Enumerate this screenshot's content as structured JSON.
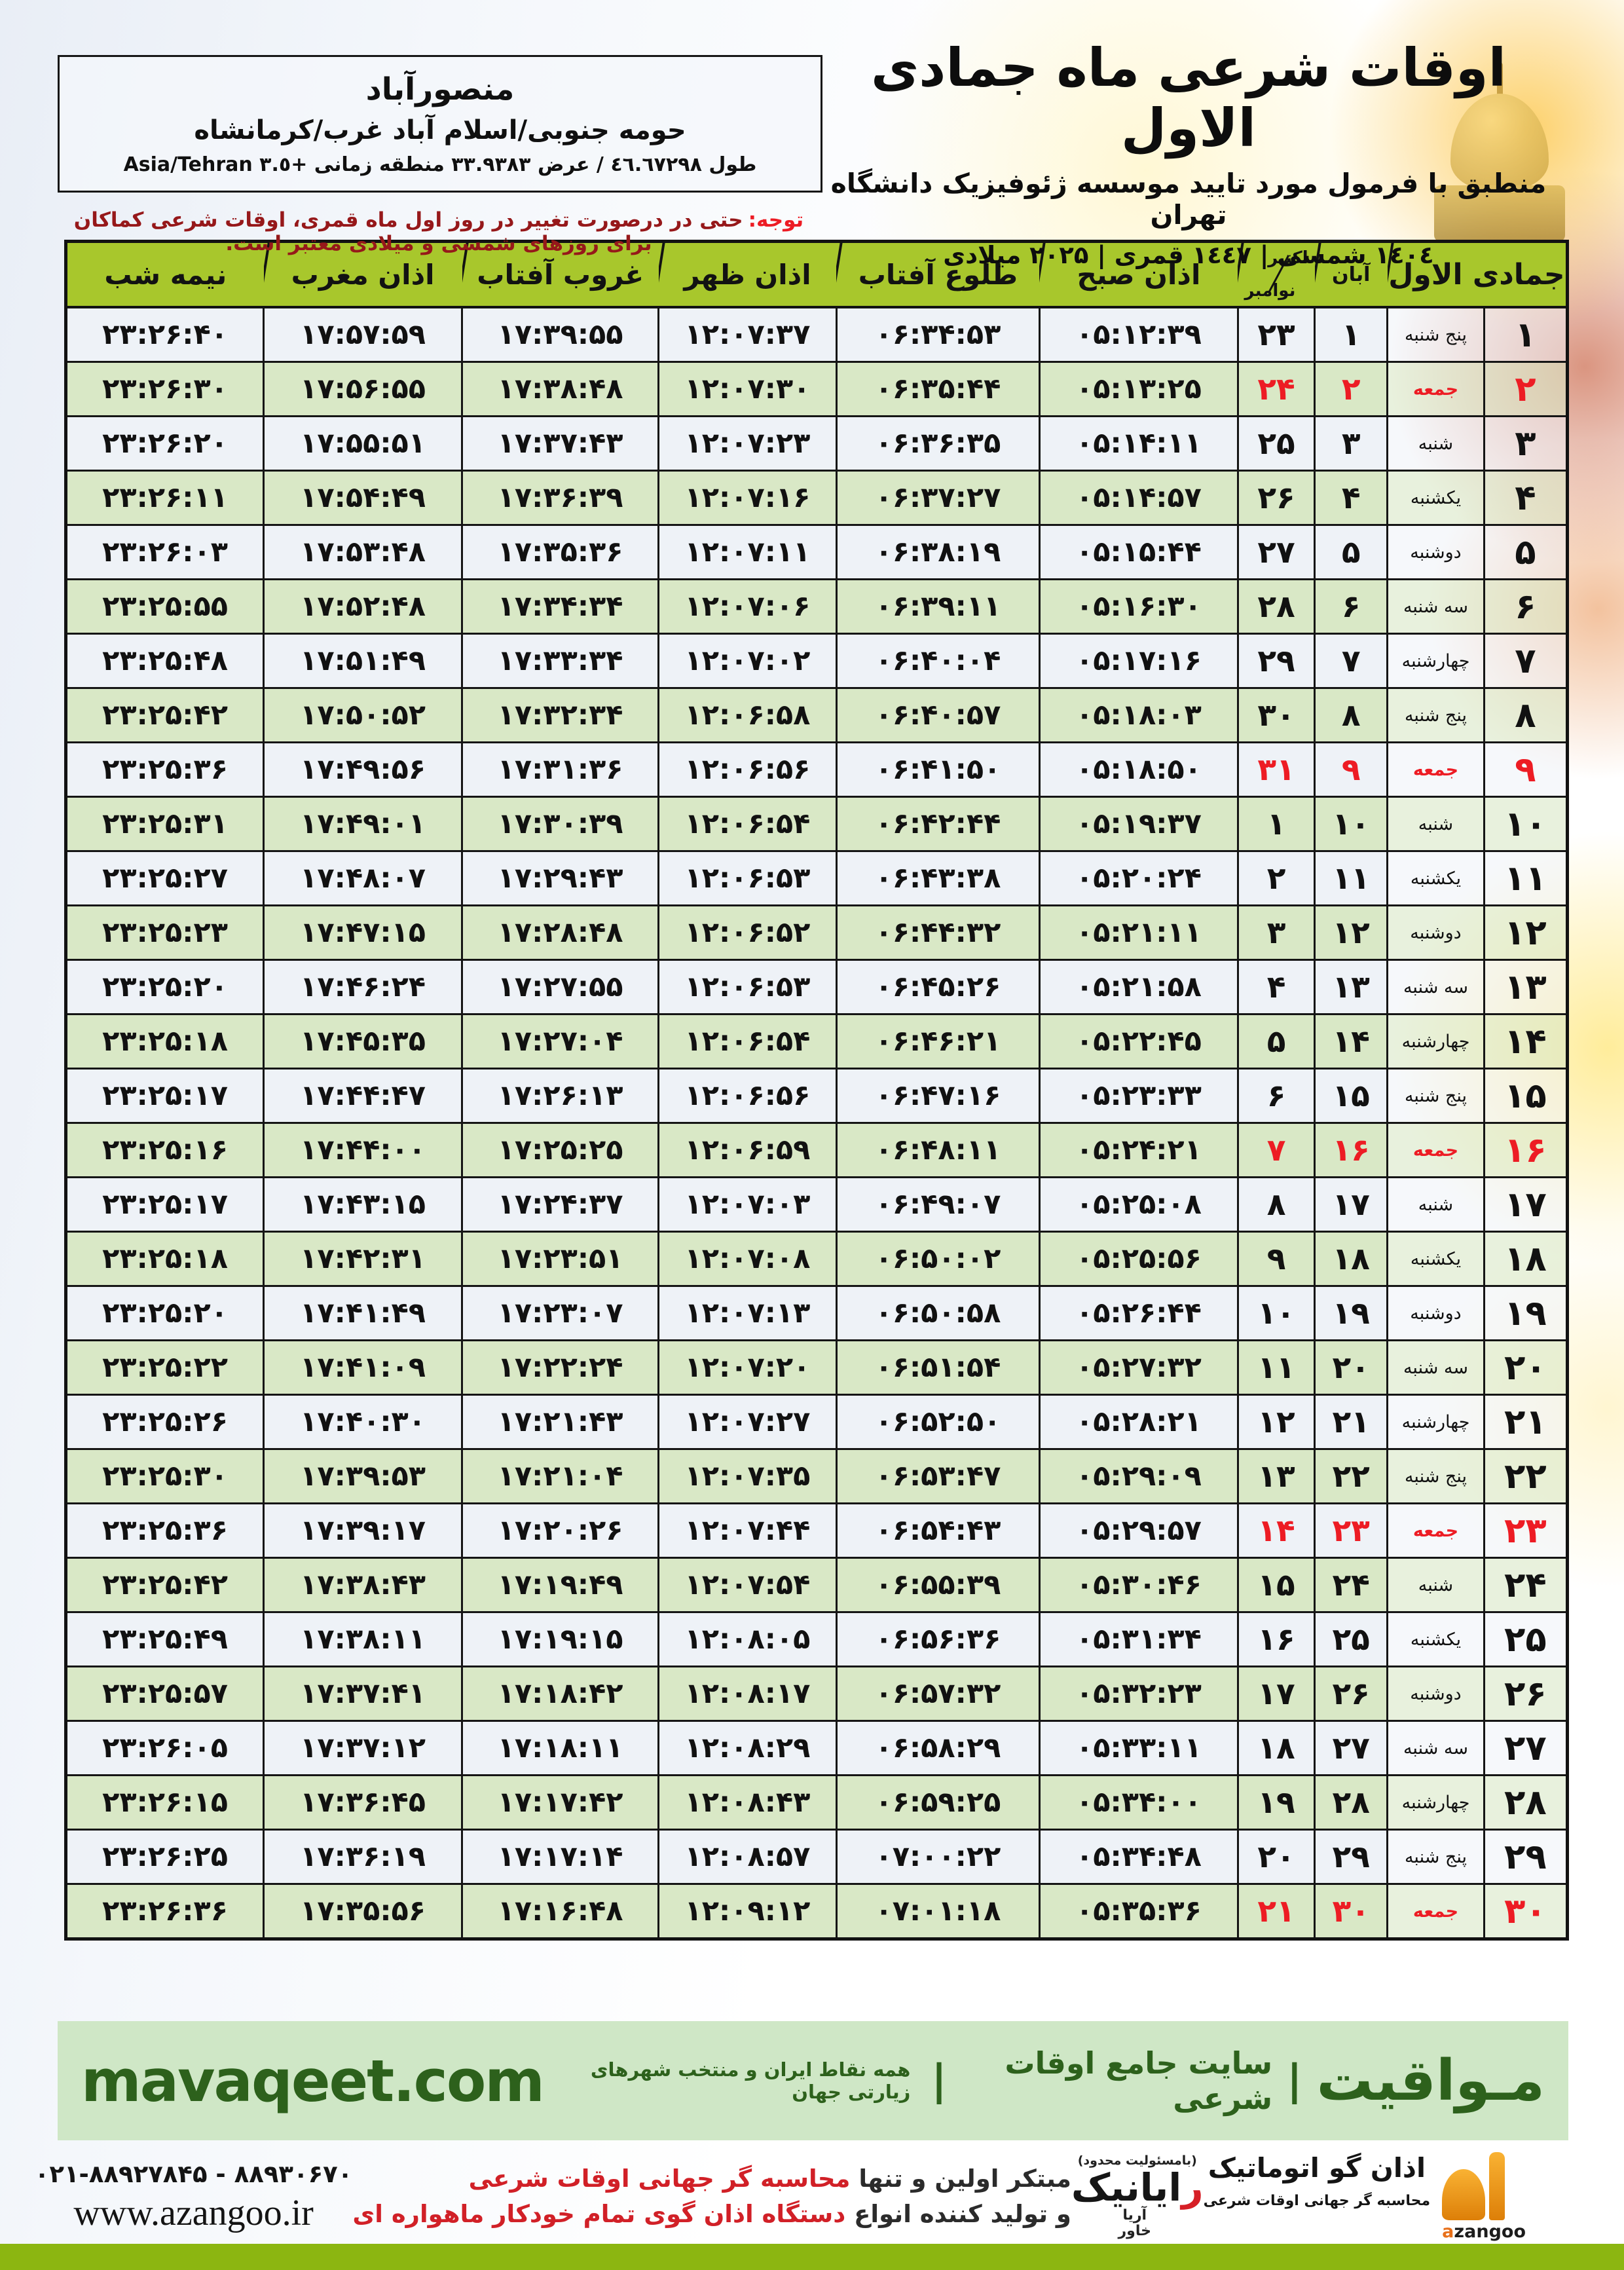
{
  "colors": {
    "header_green": "#a8c72c",
    "row_green": "#d9e8c6",
    "row_light": "#eef2f7",
    "friday_red": "#ed1c24",
    "banner_green": "#cfe7c6",
    "banner_text": "#2d611c",
    "strip_olive": "#8cb611",
    "note_red": "#96181a"
  },
  "header": {
    "title": "اوقات شرعی ماه جمادی الاول",
    "subtitle": "منطبق با فرمول مورد تایید موسسه ژئوفیزیک دانشگاه تهران",
    "year_line": "۱٤۰٤ شمسی | ۱٤٤۷ قمری | ۲۰۲۵ میلادی"
  },
  "location": {
    "name": "منصورآباد",
    "region": "حومه جنوبی/اسلام آباد غرب/کرمانشاه",
    "coords_line": "طول ٤٦.٦٧٢٩٨ / عرض ٣٣.٩٣٨٣ منطقه زمانی +٣.٥ Asia/Tehran"
  },
  "notice": {
    "label": "توجه:",
    "text": "حتی در درصورت تغییر در روز اول ماه قمری، اوقات شرعی کماکان برای روزهای شمسی و میلادی معتبر است."
  },
  "table": {
    "headers": {
      "month": "جمادی الاول",
      "aban": "آبان",
      "greg_top": "اکتبر",
      "greg_bottom": "نوامبر",
      "fajr": "اذان صبح",
      "sunrise": "طلوع آفتاب",
      "dhuhr": "اذان ظهر",
      "sunset": "غروب آفتاب",
      "maghrib": "اذان مغرب",
      "midnight": "نیمه شب"
    },
    "rows": [
      {
        "day": "۱",
        "weekday": "پنج شنبه",
        "aban": "۱",
        "greg": "۲۳",
        "fajr": "۰۵:۱۲:۳۹",
        "sunrise": "۰۶:۳۴:۵۳",
        "dhuhr": "۱۲:۰۷:۳۷",
        "sunset": "۱۷:۳۹:۵۵",
        "maghrib": "۱۷:۵۷:۵۹",
        "midnight": "۲۳:۲۶:۴۰",
        "friday": false
      },
      {
        "day": "۲",
        "weekday": "جمعه",
        "aban": "۲",
        "greg": "۲۴",
        "fajr": "۰۵:۱۳:۲۵",
        "sunrise": "۰۶:۳۵:۴۴",
        "dhuhr": "۱۲:۰۷:۳۰",
        "sunset": "۱۷:۳۸:۴۸",
        "maghrib": "۱۷:۵۶:۵۵",
        "midnight": "۲۳:۲۶:۳۰",
        "friday": true
      },
      {
        "day": "۳",
        "weekday": "شنبه",
        "aban": "۳",
        "greg": "۲۵",
        "fajr": "۰۵:۱۴:۱۱",
        "sunrise": "۰۶:۳۶:۳۵",
        "dhuhr": "۱۲:۰۷:۲۳",
        "sunset": "۱۷:۳۷:۴۳",
        "maghrib": "۱۷:۵۵:۵۱",
        "midnight": "۲۳:۲۶:۲۰",
        "friday": false
      },
      {
        "day": "۴",
        "weekday": "یکشنبه",
        "aban": "۴",
        "greg": "۲۶",
        "fajr": "۰۵:۱۴:۵۷",
        "sunrise": "۰۶:۳۷:۲۷",
        "dhuhr": "۱۲:۰۷:۱۶",
        "sunset": "۱۷:۳۶:۳۹",
        "maghrib": "۱۷:۵۴:۴۹",
        "midnight": "۲۳:۲۶:۱۱",
        "friday": false
      },
      {
        "day": "۵",
        "weekday": "دوشنبه",
        "aban": "۵",
        "greg": "۲۷",
        "fajr": "۰۵:۱۵:۴۴",
        "sunrise": "۰۶:۳۸:۱۹",
        "dhuhr": "۱۲:۰۷:۱۱",
        "sunset": "۱۷:۳۵:۳۶",
        "maghrib": "۱۷:۵۳:۴۸",
        "midnight": "۲۳:۲۶:۰۳",
        "friday": false
      },
      {
        "day": "۶",
        "weekday": "سه شنبه",
        "aban": "۶",
        "greg": "۲۸",
        "fajr": "۰۵:۱۶:۳۰",
        "sunrise": "۰۶:۳۹:۱۱",
        "dhuhr": "۱۲:۰۷:۰۶",
        "sunset": "۱۷:۳۴:۳۴",
        "maghrib": "۱۷:۵۲:۴۸",
        "midnight": "۲۳:۲۵:۵۵",
        "friday": false
      },
      {
        "day": "۷",
        "weekday": "چهارشنبه",
        "aban": "۷",
        "greg": "۲۹",
        "fajr": "۰۵:۱۷:۱۶",
        "sunrise": "۰۶:۴۰:۰۴",
        "dhuhr": "۱۲:۰۷:۰۲",
        "sunset": "۱۷:۳۳:۳۴",
        "maghrib": "۱۷:۵۱:۴۹",
        "midnight": "۲۳:۲۵:۴۸",
        "friday": false
      },
      {
        "day": "۸",
        "weekday": "پنج شنبه",
        "aban": "۸",
        "greg": "۳۰",
        "fajr": "۰۵:۱۸:۰۳",
        "sunrise": "۰۶:۴۰:۵۷",
        "dhuhr": "۱۲:۰۶:۵۸",
        "sunset": "۱۷:۳۲:۳۴",
        "maghrib": "۱۷:۵۰:۵۲",
        "midnight": "۲۳:۲۵:۴۲",
        "friday": false
      },
      {
        "day": "۹",
        "weekday": "جمعه",
        "aban": "۹",
        "greg": "۳۱",
        "fajr": "۰۵:۱۸:۵۰",
        "sunrise": "۰۶:۴۱:۵۰",
        "dhuhr": "۱۲:۰۶:۵۶",
        "sunset": "۱۷:۳۱:۳۶",
        "maghrib": "۱۷:۴۹:۵۶",
        "midnight": "۲۳:۲۵:۳۶",
        "friday": true
      },
      {
        "day": "۱۰",
        "weekday": "شنبه",
        "aban": "۱۰",
        "greg": "۱",
        "fajr": "۰۵:۱۹:۳۷",
        "sunrise": "۰۶:۴۲:۴۴",
        "dhuhr": "۱۲:۰۶:۵۴",
        "sunset": "۱۷:۳۰:۳۹",
        "maghrib": "۱۷:۴۹:۰۱",
        "midnight": "۲۳:۲۵:۳۱",
        "friday": false
      },
      {
        "day": "۱۱",
        "weekday": "یکشنبه",
        "aban": "۱۱",
        "greg": "۲",
        "fajr": "۰۵:۲۰:۲۴",
        "sunrise": "۰۶:۴۳:۳۸",
        "dhuhr": "۱۲:۰۶:۵۳",
        "sunset": "۱۷:۲۹:۴۳",
        "maghrib": "۱۷:۴۸:۰۷",
        "midnight": "۲۳:۲۵:۲۷",
        "friday": false
      },
      {
        "day": "۱۲",
        "weekday": "دوشنبه",
        "aban": "۱۲",
        "greg": "۳",
        "fajr": "۰۵:۲۱:۱۱",
        "sunrise": "۰۶:۴۴:۳۲",
        "dhuhr": "۱۲:۰۶:۵۲",
        "sunset": "۱۷:۲۸:۴۸",
        "maghrib": "۱۷:۴۷:۱۵",
        "midnight": "۲۳:۲۵:۲۳",
        "friday": false
      },
      {
        "day": "۱۳",
        "weekday": "سه شنبه",
        "aban": "۱۳",
        "greg": "۴",
        "fajr": "۰۵:۲۱:۵۸",
        "sunrise": "۰۶:۴۵:۲۶",
        "dhuhr": "۱۲:۰۶:۵۳",
        "sunset": "۱۷:۲۷:۵۵",
        "maghrib": "۱۷:۴۶:۲۴",
        "midnight": "۲۳:۲۵:۲۰",
        "friday": false
      },
      {
        "day": "۱۴",
        "weekday": "چهارشنبه",
        "aban": "۱۴",
        "greg": "۵",
        "fajr": "۰۵:۲۲:۴۵",
        "sunrise": "۰۶:۴۶:۲۱",
        "dhuhr": "۱۲:۰۶:۵۴",
        "sunset": "۱۷:۲۷:۰۴",
        "maghrib": "۱۷:۴۵:۳۵",
        "midnight": "۲۳:۲۵:۱۸",
        "friday": false
      },
      {
        "day": "۱۵",
        "weekday": "پنج شنبه",
        "aban": "۱۵",
        "greg": "۶",
        "fajr": "۰۵:۲۳:۳۳",
        "sunrise": "۰۶:۴۷:۱۶",
        "dhuhr": "۱۲:۰۶:۵۶",
        "sunset": "۱۷:۲۶:۱۳",
        "maghrib": "۱۷:۴۴:۴۷",
        "midnight": "۲۳:۲۵:۱۷",
        "friday": false
      },
      {
        "day": "۱۶",
        "weekday": "جمعه",
        "aban": "۱۶",
        "greg": "۷",
        "fajr": "۰۵:۲۴:۲۱",
        "sunrise": "۰۶:۴۸:۱۱",
        "dhuhr": "۱۲:۰۶:۵۹",
        "sunset": "۱۷:۲۵:۲۵",
        "maghrib": "۱۷:۴۴:۰۰",
        "midnight": "۲۳:۲۵:۱۶",
        "friday": true
      },
      {
        "day": "۱۷",
        "weekday": "شنبه",
        "aban": "۱۷",
        "greg": "۸",
        "fajr": "۰۵:۲۵:۰۸",
        "sunrise": "۰۶:۴۹:۰۷",
        "dhuhr": "۱۲:۰۷:۰۳",
        "sunset": "۱۷:۲۴:۳۷",
        "maghrib": "۱۷:۴۳:۱۵",
        "midnight": "۲۳:۲۵:۱۷",
        "friday": false
      },
      {
        "day": "۱۸",
        "weekday": "یکشنبه",
        "aban": "۱۸",
        "greg": "۹",
        "fajr": "۰۵:۲۵:۵۶",
        "sunrise": "۰۶:۵۰:۰۲",
        "dhuhr": "۱۲:۰۷:۰۸",
        "sunset": "۱۷:۲۳:۵۱",
        "maghrib": "۱۷:۴۲:۳۱",
        "midnight": "۲۳:۲۵:۱۸",
        "friday": false
      },
      {
        "day": "۱۹",
        "weekday": "دوشنبه",
        "aban": "۱۹",
        "greg": "۱۰",
        "fajr": "۰۵:۲۶:۴۴",
        "sunrise": "۰۶:۵۰:۵۸",
        "dhuhr": "۱۲:۰۷:۱۳",
        "sunset": "۱۷:۲۳:۰۷",
        "maghrib": "۱۷:۴۱:۴۹",
        "midnight": "۲۳:۲۵:۲۰",
        "friday": false
      },
      {
        "day": "۲۰",
        "weekday": "سه شنبه",
        "aban": "۲۰",
        "greg": "۱۱",
        "fajr": "۰۵:۲۷:۳۲",
        "sunrise": "۰۶:۵۱:۵۴",
        "dhuhr": "۱۲:۰۷:۲۰",
        "sunset": "۱۷:۲۲:۲۴",
        "maghrib": "۱۷:۴۱:۰۹",
        "midnight": "۲۳:۲۵:۲۲",
        "friday": false
      },
      {
        "day": "۲۱",
        "weekday": "چهارشنبه",
        "aban": "۲۱",
        "greg": "۱۲",
        "fajr": "۰۵:۲۸:۲۱",
        "sunrise": "۰۶:۵۲:۵۰",
        "dhuhr": "۱۲:۰۷:۲۷",
        "sunset": "۱۷:۲۱:۴۳",
        "maghrib": "۱۷:۴۰:۳۰",
        "midnight": "۲۳:۲۵:۲۶",
        "friday": false
      },
      {
        "day": "۲۲",
        "weekday": "پنج شنبه",
        "aban": "۲۲",
        "greg": "۱۳",
        "fajr": "۰۵:۲۹:۰۹",
        "sunrise": "۰۶:۵۳:۴۷",
        "dhuhr": "۱۲:۰۷:۳۵",
        "sunset": "۱۷:۲۱:۰۴",
        "maghrib": "۱۷:۳۹:۵۳",
        "midnight": "۲۳:۲۵:۳۰",
        "friday": false
      },
      {
        "day": "۲۳",
        "weekday": "جمعه",
        "aban": "۲۳",
        "greg": "۱۴",
        "fajr": "۰۵:۲۹:۵۷",
        "sunrise": "۰۶:۵۴:۴۳",
        "dhuhr": "۱۲:۰۷:۴۴",
        "sunset": "۱۷:۲۰:۲۶",
        "maghrib": "۱۷:۳۹:۱۷",
        "midnight": "۲۳:۲۵:۳۶",
        "friday": true
      },
      {
        "day": "۲۴",
        "weekday": "شنبه",
        "aban": "۲۴",
        "greg": "۱۵",
        "fajr": "۰۵:۳۰:۴۶",
        "sunrise": "۰۶:۵۵:۳۹",
        "dhuhr": "۱۲:۰۷:۵۴",
        "sunset": "۱۷:۱۹:۴۹",
        "maghrib": "۱۷:۳۸:۴۳",
        "midnight": "۲۳:۲۵:۴۲",
        "friday": false
      },
      {
        "day": "۲۵",
        "weekday": "یکشنبه",
        "aban": "۲۵",
        "greg": "۱۶",
        "fajr": "۰۵:۳۱:۳۴",
        "sunrise": "۰۶:۵۶:۳۶",
        "dhuhr": "۱۲:۰۸:۰۵",
        "sunset": "۱۷:۱۹:۱۵",
        "maghrib": "۱۷:۳۸:۱۱",
        "midnight": "۲۳:۲۵:۴۹",
        "friday": false
      },
      {
        "day": "۲۶",
        "weekday": "دوشنبه",
        "aban": "۲۶",
        "greg": "۱۷",
        "fajr": "۰۵:۳۲:۲۳",
        "sunrise": "۰۶:۵۷:۳۲",
        "dhuhr": "۱۲:۰۸:۱۷",
        "sunset": "۱۷:۱۸:۴۲",
        "maghrib": "۱۷:۳۷:۴۱",
        "midnight": "۲۳:۲۵:۵۷",
        "friday": false
      },
      {
        "day": "۲۷",
        "weekday": "سه شنبه",
        "aban": "۲۷",
        "greg": "۱۸",
        "fajr": "۰۵:۳۳:۱۱",
        "sunrise": "۰۶:۵۸:۲۹",
        "dhuhr": "۱۲:۰۸:۲۹",
        "sunset": "۱۷:۱۸:۱۱",
        "maghrib": "۱۷:۳۷:۱۲",
        "midnight": "۲۳:۲۶:۰۵",
        "friday": false
      },
      {
        "day": "۲۸",
        "weekday": "چهارشنبه",
        "aban": "۲۸",
        "greg": "۱۹",
        "fajr": "۰۵:۳۴:۰۰",
        "sunrise": "۰۶:۵۹:۲۵",
        "dhuhr": "۱۲:۰۸:۴۳",
        "sunset": "۱۷:۱۷:۴۲",
        "maghrib": "۱۷:۳۶:۴۵",
        "midnight": "۲۳:۲۶:۱۵",
        "friday": false
      },
      {
        "day": "۲۹",
        "weekday": "پنج شنبه",
        "aban": "۲۹",
        "greg": "۲۰",
        "fajr": "۰۵:۳۴:۴۸",
        "sunrise": "۰۷:۰۰:۲۲",
        "dhuhr": "۱۲:۰۸:۵۷",
        "sunset": "۱۷:۱۷:۱۴",
        "maghrib": "۱۷:۳۶:۱۹",
        "midnight": "۲۳:۲۶:۲۵",
        "friday": false
      },
      {
        "day": "۳۰",
        "weekday": "جمعه",
        "aban": "۳۰",
        "greg": "۲۱",
        "fajr": "۰۵:۳۵:۳۶",
        "sunrise": "۰۷:۰۱:۱۸",
        "dhuhr": "۱۲:۰۹:۱۲",
        "sunset": "۱۷:۱۶:۴۸",
        "maghrib": "۱۷:۳۵:۵۶",
        "midnight": "۲۳:۲۶:۳۶",
        "friday": true
      }
    ]
  },
  "banner": {
    "brand": "مـواقیت",
    "divider": "|",
    "site_label": "سایت جامع اوقات شرعی",
    "coverage": "همه نقاط ایران و منتخب شهرهای زیارتی جهان",
    "url": "mavaqeet.com"
  },
  "footer": {
    "promo_line1_black": "مبتکر اولین و تنها ",
    "promo_line1_red": "محاسبه گر جهانی اوقات شرعی",
    "promo_line2_black": "و تولید کننده انواع ",
    "promo_line2_red": "دستگاه اذان گوی تمام خودکار ماهواره ای",
    "phone": "۰۲۱-۸۸۹۲۷۸۴۵ - ۸۸۹۳۰۶۷۰",
    "website": "www.azangoo.ir",
    "rayanik": {
      "note": "(بامسئولیت محدود)",
      "name_initial": "ر",
      "name_rest": "ایانیک",
      "sub_top": "آریا",
      "sub_bottom": "خاور"
    },
    "azangoo": {
      "name": "اذان گو اتوماتیک",
      "tagline": "محاسبه گر جهانی اوقات شرعی",
      "latin_a": "a",
      "latin_rest": "zangoo"
    }
  }
}
